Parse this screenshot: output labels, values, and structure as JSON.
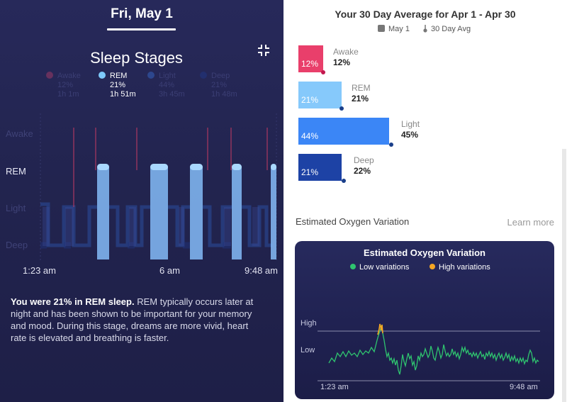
{
  "left": {
    "date": "Fri, May 1",
    "title": "Sleep Stages",
    "legend": [
      {
        "name": "Awake",
        "pct": "12%",
        "duration": "1h 1m",
        "color": "#e2466e",
        "active": false
      },
      {
        "name": "REM",
        "pct": "21%",
        "duration": "1h 51m",
        "color": "#7ec9fb",
        "active": true
      },
      {
        "name": "Light",
        "pct": "44%",
        "duration": "3h 45m",
        "color": "#3d84f5",
        "active": false
      },
      {
        "name": "Deep",
        "pct": "21%",
        "duration": "1h 48m",
        "color": "#1e3f9a",
        "active": false
      }
    ],
    "axis_labels": {
      "awake": "Awake",
      "rem": "REM",
      "light": "Light",
      "deep": "Deep"
    },
    "times": {
      "start": "1:23 am",
      "mid": "6 am",
      "end": "9:48 am"
    },
    "description_bold": "You were 21% in REM sleep.",
    "description": " REM typically occurs later at night and has been shown to be important for your memory and mood. During this stage, dreams are more vivid, heart rate is elevated and breathing is faster."
  },
  "right": {
    "avg_title": "Your 30 Day Average for Apr 1 - Apr 30",
    "legend_day": "May 1",
    "legend_avg": "30 Day Avg",
    "bars": [
      {
        "name": "Awake",
        "today": "12%",
        "avg": "12%",
        "today_value": 12,
        "avg_value": 12,
        "color": "#e93f6b"
      },
      {
        "name": "REM",
        "today": "21%",
        "avg": "21%",
        "today_value": 21,
        "avg_value": 21,
        "color": "#86c9fb"
      },
      {
        "name": "Light",
        "today": "44%",
        "avg": "45%",
        "today_value": 44,
        "avg_value": 45,
        "color": "#3b86f6"
      },
      {
        "name": "Deep",
        "today": "21%",
        "avg": "22%",
        "today_value": 21,
        "avg_value": 22,
        "color": "#1d42a5"
      }
    ],
    "oxygen_heading": "Estimated Oxygen Variation",
    "learn_more": "Learn more",
    "card": {
      "title": "Estimated Oxygen Variation",
      "low_label": "Low variations",
      "high_label": "High variations",
      "low_color": "#2fc46f",
      "high_color": "#f5a623",
      "axis_high": "High",
      "axis_low": "Low",
      "time_start": "1:23 am",
      "time_end": "9:48 am"
    }
  }
}
